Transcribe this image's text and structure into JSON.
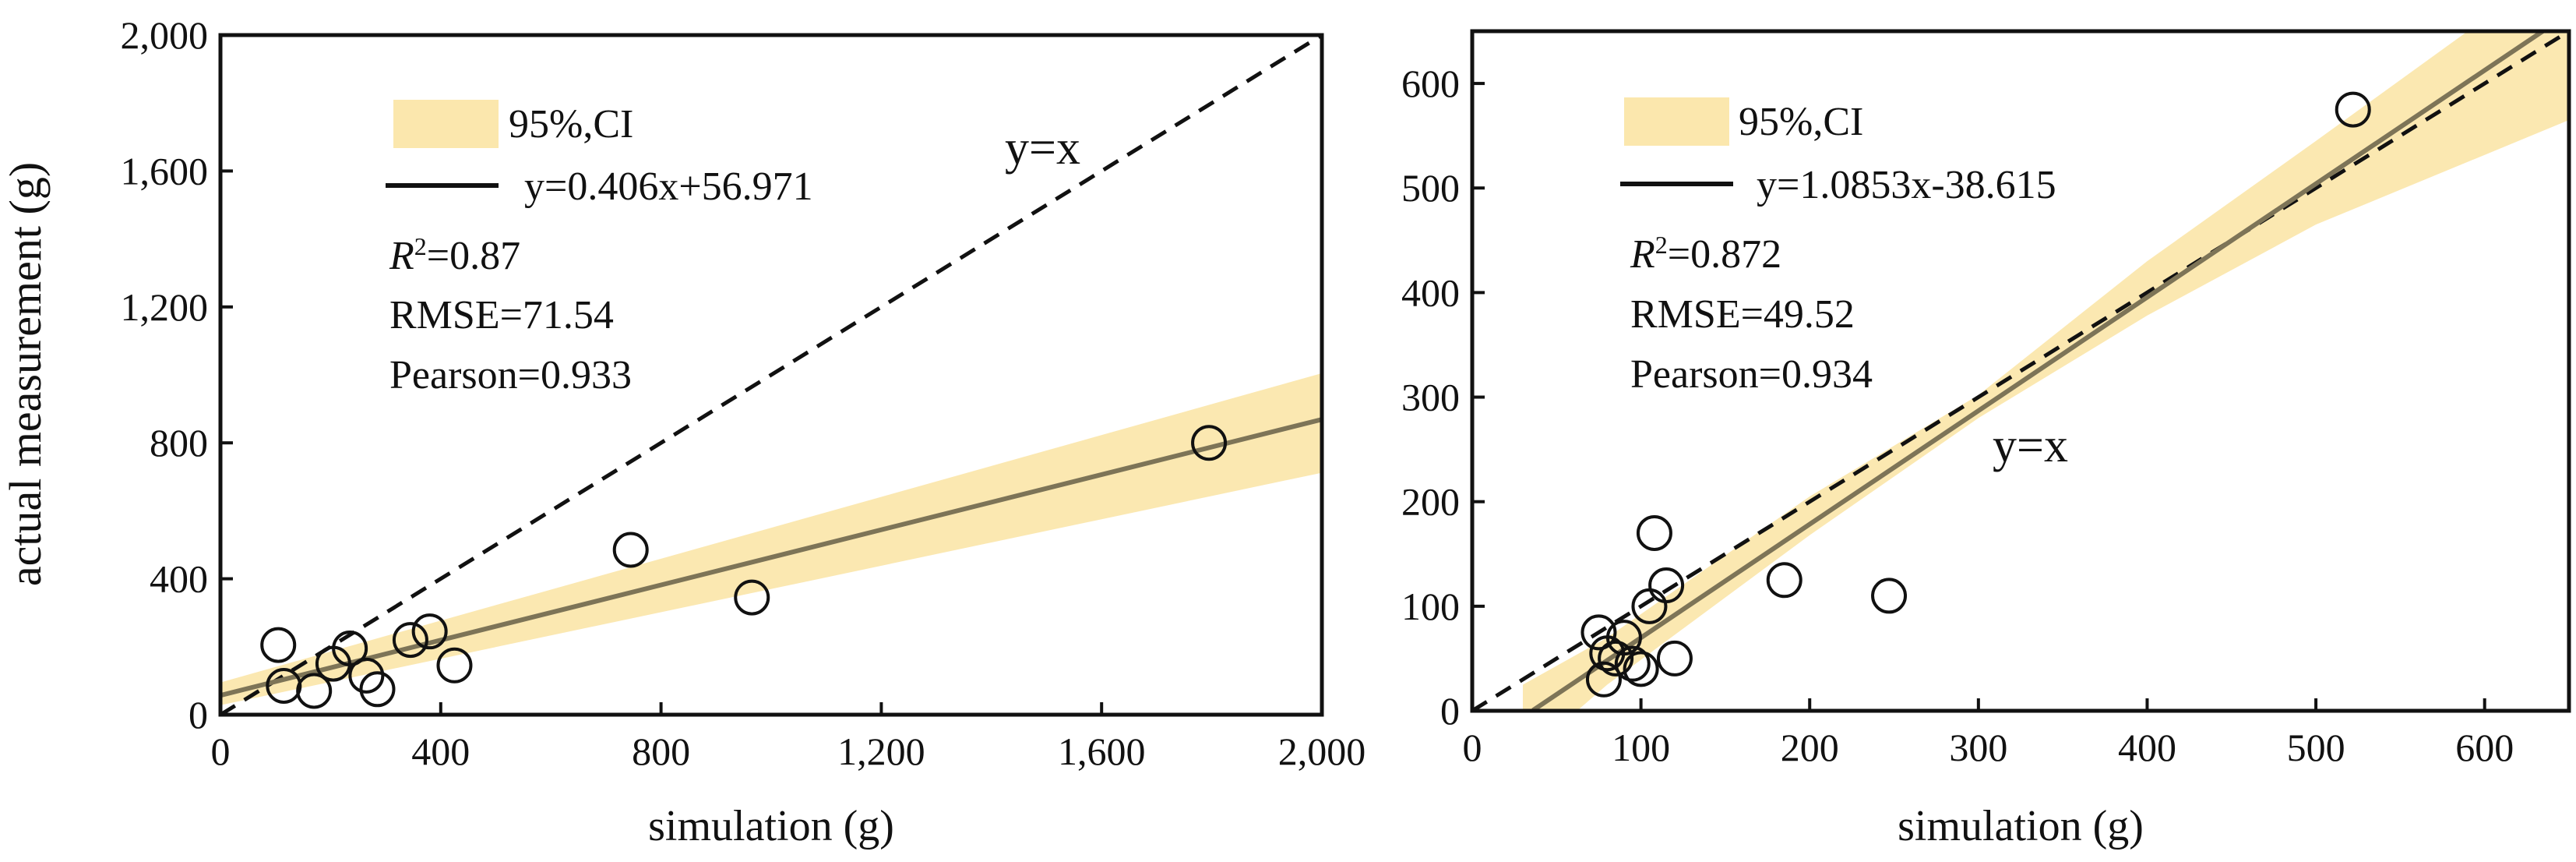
{
  "colors": {
    "ci_fill": "#fbe7ad",
    "fit_line": "#7d7457",
    "identity_line": "#111111",
    "axis": "#111111",
    "marker": "#111111"
  },
  "figure": {
    "ylabel": "actual measurement (g)"
  },
  "chart_data": [
    {
      "type": "scatter",
      "id": "left",
      "xlabel": "simulation (g)",
      "ylabel": "actual measurement (g)",
      "xlim": [
        0,
        2000
      ],
      "ylim": [
        0,
        2000
      ],
      "xticks": [
        0,
        400,
        800,
        1200,
        1600,
        2000
      ],
      "xtick_labels": [
        "0",
        "400",
        "800",
        "1,200",
        "1,600",
        "2,000"
      ],
      "yticks": [
        0,
        400,
        800,
        1200,
        1600,
        2000
      ],
      "ytick_labels": [
        "0",
        "400",
        "800",
        "1,200",
        "1,600",
        "2,000"
      ],
      "legend": {
        "ci_label": "95%,CI",
        "fit_label": "y=0.406x+56.971",
        "r2_value": "=0.87",
        "rmse": "RMSE=71.54",
        "pearson": "Pearson=0.933"
      },
      "identity_label": "y=x",
      "fit": {
        "slope": 0.406,
        "intercept": 56.971,
        "x_range": [
          0,
          2000
        ]
      },
      "ci_band": {
        "x": [
          0,
          2000
        ],
        "lower": [
          28,
          712
        ],
        "upper": [
          95,
          1005
        ]
      },
      "points": {
        "x": [
          105,
          115,
          170,
          205,
          235,
          265,
          285,
          345,
          380,
          425,
          745,
          965,
          1795
        ],
        "y": [
          205,
          85,
          70,
          150,
          195,
          115,
          75,
          220,
          245,
          145,
          485,
          345,
          800
        ]
      }
    },
    {
      "type": "scatter",
      "id": "right",
      "xlabel": "simulation (g)",
      "ylabel": "",
      "xlim": [
        0,
        650
      ],
      "ylim": [
        0,
        650
      ],
      "xticks": [
        0,
        100,
        200,
        300,
        400,
        500,
        600
      ],
      "xtick_labels": [
        "0",
        "100",
        "200",
        "300",
        "400",
        "500",
        "600"
      ],
      "yticks": [
        0,
        100,
        200,
        300,
        400,
        500,
        600
      ],
      "ytick_labels": [
        "0",
        "100",
        "200",
        "300",
        "400",
        "500",
        "600"
      ],
      "legend": {
        "ci_label": "95%,CI",
        "fit_label": "y=1.0853x-38.615",
        "r2_value": "=0.872",
        "rmse": "RMSE=49.52",
        "pearson": "Pearson=0.934"
      },
      "identity_label": "y=x",
      "fit": {
        "slope": 1.0853,
        "intercept": -38.615,
        "x_range": [
          36,
          650
        ]
      },
      "ci_band": {
        "x": [
          30,
          80,
          200,
          300,
          400,
          500,
          650
        ],
        "lower": [
          -45,
          25,
          168,
          280,
          378,
          465,
          565
        ],
        "upper": [
          25,
          70,
          205,
          302,
          430,
          545,
          720
        ]
      },
      "points": {
        "x": [
          75,
          78,
          80,
          85,
          90,
          95,
          100,
          105,
          108,
          115,
          120,
          185,
          247,
          522
        ],
        "y": [
          75,
          30,
          55,
          50,
          70,
          45,
          40,
          100,
          170,
          120,
          50,
          125,
          110,
          575
        ]
      }
    }
  ]
}
